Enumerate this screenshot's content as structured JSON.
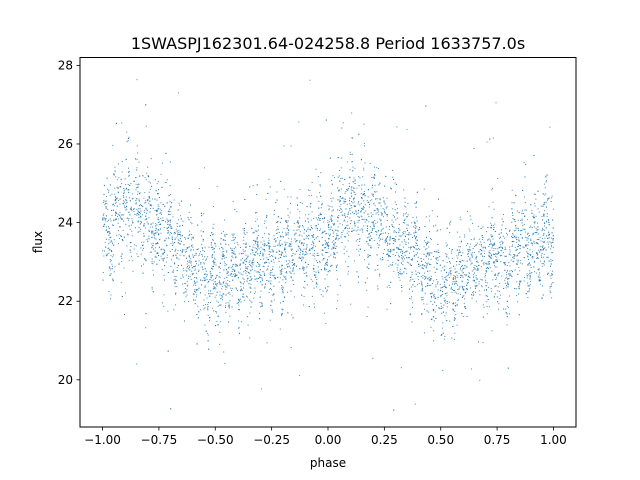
{
  "chart_data": {
    "type": "scatter",
    "title": "1SWASPJ162301.64-024258.8 Period 1633757.0s",
    "xlabel": "phase",
    "ylabel": "flux",
    "xlim": [
      -1.1,
      1.1
    ],
    "ylim": [
      18.8,
      28.2
    ],
    "x_ticks": [
      -1.0,
      -0.75,
      -0.5,
      -0.25,
      0.0,
      0.25,
      0.5,
      0.75,
      1.0
    ],
    "x_tick_labels": [
      "−1.00",
      "−0.75",
      "−0.50",
      "−0.25",
      "0.00",
      "0.25",
      "0.50",
      "0.75",
      "1.00"
    ],
    "y_ticks": [
      20,
      22,
      24,
      26,
      28
    ],
    "y_tick_labels": [
      "20",
      "22",
      "24",
      "26",
      "28"
    ],
    "grid": false,
    "marker_color": "#1f77b4",
    "series": [
      {
        "phase": [
          -1.0,
          -0.95,
          -0.9,
          -0.85,
          -0.8,
          -0.75,
          -0.7,
          -0.65,
          -0.6,
          -0.55,
          -0.5,
          -0.45,
          -0.4,
          -0.35,
          -0.3,
          -0.25,
          -0.2,
          -0.15,
          -0.1,
          -0.05,
          0.0,
          0.05,
          0.1,
          0.15,
          0.2,
          0.25,
          0.3,
          0.35,
          0.4,
          0.45,
          0.5,
          0.55,
          0.6,
          0.65,
          0.7,
          0.75,
          0.8,
          0.85,
          0.9,
          0.95,
          1.0
        ],
        "flux_mean": [
          23.6,
          24.0,
          24.4,
          24.2,
          24.0,
          23.8,
          23.6,
          23.3,
          23.0,
          22.7,
          22.5,
          22.6,
          22.7,
          22.9,
          23.0,
          23.1,
          23.2,
          23.3,
          23.4,
          23.5,
          23.6,
          24.0,
          24.4,
          24.2,
          24.0,
          23.8,
          23.6,
          23.3,
          23.0,
          22.7,
          22.5,
          22.6,
          22.7,
          22.9,
          23.0,
          23.1,
          23.2,
          23.3,
          23.4,
          23.5,
          23.6
        ],
        "flux_spread": [
          1.1,
          1.2,
          1.3,
          1.2,
          1.1,
          1.1,
          1.0,
          1.0,
          1.0,
          1.0,
          1.0,
          1.0,
          1.0,
          1.0,
          1.0,
          1.0,
          1.0,
          1.0,
          1.0,
          1.1,
          1.1,
          1.2,
          1.3,
          1.2,
          1.1,
          1.1,
          1.0,
          1.0,
          1.0,
          1.0,
          1.0,
          1.0,
          1.0,
          1.0,
          1.0,
          1.0,
          1.0,
          1.0,
          1.0,
          1.1,
          1.1
        ],
        "flux_min_observed": 19.2,
        "flux_max_observed": 27.7
      }
    ]
  }
}
